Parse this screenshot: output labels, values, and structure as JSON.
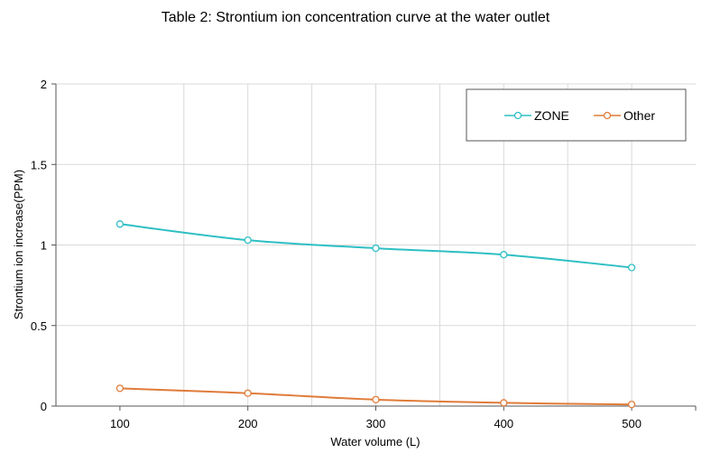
{
  "chart_data": {
    "type": "line",
    "title": "Table 2: Strontium ion concentration curve at the water outlet",
    "xlabel": "Water volume (L)",
    "ylabel": "Strontium ion increase(PPM)",
    "x": [
      100,
      200,
      300,
      400,
      500
    ],
    "xticks": [
      "100",
      "200",
      "300",
      "400",
      "500"
    ],
    "xlim": [
      50,
      550
    ],
    "ylim": [
      0,
      2
    ],
    "yticks": [
      "0",
      "0.5",
      "1",
      "1.5",
      "2"
    ],
    "grid": "vertical",
    "legend_position": "top-right",
    "series": [
      {
        "name": "ZONE",
        "color": "#2ebfc4",
        "values": [
          1.13,
          1.03,
          0.98,
          0.94,
          0.86
        ]
      },
      {
        "name": "Other",
        "color": "#e07b39",
        "values": [
          0.11,
          0.08,
          0.04,
          0.02,
          0.01
        ]
      }
    ]
  }
}
